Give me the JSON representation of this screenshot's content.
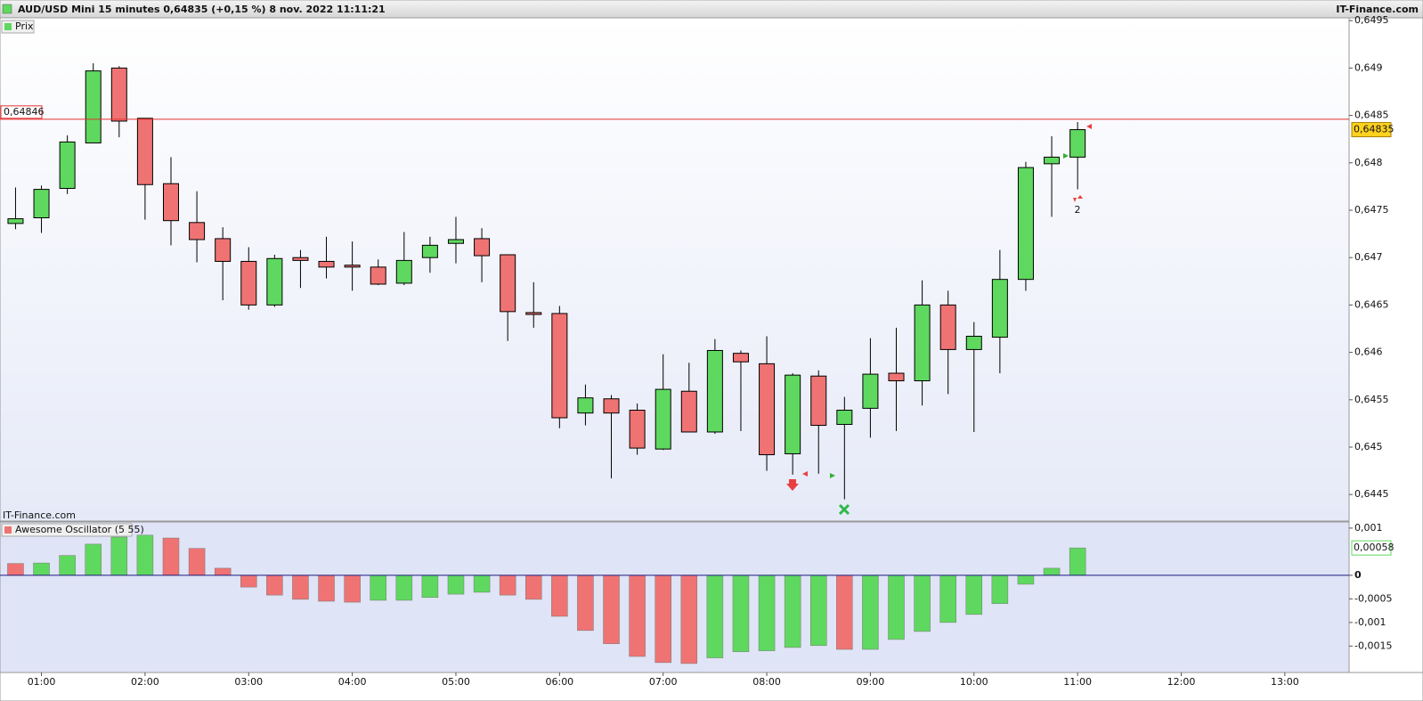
{
  "chart_data": [
    {
      "type": "candlestick",
      "title": "AUD/USD Mini 15 minutes 0,64835 (+0,15 %) 8 nov. 2022 11:11:21",
      "source": "IT-Finance.com",
      "legend": "Prix",
      "watermark": "IT-Finance.com",
      "x": [
        0.75,
        1,
        1.25,
        1.5,
        1.75,
        2,
        2.25,
        2.5,
        2.75,
        3,
        3.25,
        3.5,
        3.75,
        4,
        4.25,
        4.5,
        4.75,
        5,
        5.25,
        5.5,
        5.75,
        6,
        6.25,
        6.5,
        6.75,
        7,
        7.25,
        7.5,
        7.75,
        8,
        8.25,
        8.5,
        8.75,
        9,
        9.25,
        9.5,
        9.75,
        10,
        10.25,
        10.5,
        10.75,
        11
      ],
      "open": [
        0.64736,
        0.64742,
        0.64773,
        0.64821,
        0.649,
        0.64847,
        0.64778,
        0.64737,
        0.6472,
        0.64696,
        0.6465,
        0.647,
        0.64696,
        0.64692,
        0.6469,
        0.64673,
        0.647,
        0.64715,
        0.6472,
        0.64703,
        0.64642,
        0.64641,
        0.64536,
        0.64551,
        0.64539,
        0.64498,
        0.64559,
        0.64516,
        0.64599,
        0.64588,
        0.64493,
        0.64575,
        0.64524,
        0.64541,
        0.64578,
        0.6457,
        0.6465,
        0.64603,
        0.64616,
        0.64677,
        0.64799,
        0.64806
      ],
      "high": [
        0.64774,
        0.64776,
        0.64829,
        0.64905,
        0.64902,
        0.64847,
        0.64806,
        0.6477,
        0.64732,
        0.64711,
        0.64703,
        0.64708,
        0.64722,
        0.64717,
        0.64698,
        0.64727,
        0.64722,
        0.64743,
        0.64731,
        0.64703,
        0.64674,
        0.64649,
        0.64566,
        0.64555,
        0.64546,
        0.64598,
        0.64589,
        0.64614,
        0.64602,
        0.64617,
        0.64578,
        0.64581,
        0.64553,
        0.64615,
        0.64626,
        0.64676,
        0.64665,
        0.64632,
        0.64708,
        0.64801,
        0.64828,
        0.64843
      ],
      "low": [
        0.6473,
        0.64726,
        0.64767,
        0.64821,
        0.64827,
        0.6474,
        0.64713,
        0.64695,
        0.64655,
        0.64645,
        0.64648,
        0.64668,
        0.64678,
        0.64665,
        0.64671,
        0.64671,
        0.64684,
        0.64694,
        0.64674,
        0.64612,
        0.64626,
        0.6452,
        0.64523,
        0.64467,
        0.64492,
        0.64497,
        0.64516,
        0.64514,
        0.64517,
        0.64475,
        0.64471,
        0.64472,
        0.64445,
        0.6451,
        0.64517,
        0.64544,
        0.64556,
        0.64516,
        0.64578,
        0.64665,
        0.64743,
        0.64772
      ],
      "close": [
        0.64741,
        0.64772,
        0.64822,
        0.64897,
        0.64844,
        0.64777,
        0.64739,
        0.64719,
        0.64696,
        0.6465,
        0.64699,
        0.64697,
        0.6469,
        0.6469,
        0.64672,
        0.64697,
        0.64713,
        0.64719,
        0.64702,
        0.64643,
        0.6464,
        0.64531,
        0.64552,
        0.64536,
        0.64499,
        0.64561,
        0.64516,
        0.64602,
        0.6459,
        0.64492,
        0.64576,
        0.64523,
        0.64539,
        0.64577,
        0.6457,
        0.6465,
        0.64603,
        0.64617,
        0.64677,
        0.64795,
        0.64806,
        0.64835
      ],
      "up_color": "#5fd85f",
      "down_color": "#ef7373",
      "xlim": [
        0.6,
        13.62
      ],
      "xticks": [
        {
          "value": 1,
          "label": "01:00"
        },
        {
          "value": 2,
          "label": "02:00"
        },
        {
          "value": 3,
          "label": "03:00"
        },
        {
          "value": 4,
          "label": "04:00"
        },
        {
          "value": 5,
          "label": "05:00"
        },
        {
          "value": 6,
          "label": "06:00"
        },
        {
          "value": 7,
          "label": "07:00"
        },
        {
          "value": 8,
          "label": "08:00"
        },
        {
          "value": 9,
          "label": "09:00"
        },
        {
          "value": 10,
          "label": "10:00"
        },
        {
          "value": 11,
          "label": "11:00"
        },
        {
          "value": 12,
          "label": "12:00"
        },
        {
          "value": 13,
          "label": "13:00"
        }
      ],
      "ylim": [
        0.64422,
        0.64953
      ],
      "yticks": [
        {
          "value": 0.6445,
          "label": "0,6445"
        },
        {
          "value": 0.645,
          "label": "0,645"
        },
        {
          "value": 0.6455,
          "label": "0,6455"
        },
        {
          "value": 0.646,
          "label": "0,646"
        },
        {
          "value": 0.6465,
          "label": "0,6465"
        },
        {
          "value": 0.647,
          "label": "0,647"
        },
        {
          "value": 0.6475,
          "label": "0,6475"
        },
        {
          "value": 0.648,
          "label": "0,648"
        },
        {
          "value": 0.6485,
          "label": "0,6485"
        },
        {
          "value": 0.649,
          "label": "0,649"
        },
        {
          "value": 0.6495,
          "label": "0,6495"
        }
      ],
      "reference_line": {
        "value": 0.64846,
        "label": "0,64846",
        "color": "#e53030"
      },
      "last_price": {
        "value": 0.64835,
        "label": "0,64835"
      },
      "annotation": "2"
    },
    {
      "type": "bar",
      "title": "Awesome Oscillator (5 55)",
      "x": [
        0.75,
        1,
        1.25,
        1.5,
        1.75,
        2,
        2.25,
        2.5,
        2.75,
        3,
        3.25,
        3.5,
        3.75,
        4,
        4.25,
        4.5,
        4.75,
        5,
        5.25,
        5.5,
        5.75,
        6,
        6.25,
        6.5,
        6.75,
        7,
        7.25,
        7.5,
        7.75,
        8,
        8.25,
        8.5,
        8.75,
        9,
        9.25,
        9.5,
        9.75,
        10,
        10.25,
        10.5,
        10.75,
        11
      ],
      "values": [
        0.00025,
        0.00026,
        0.00042,
        0.00066,
        0.00081,
        0.00085,
        0.00079,
        0.00057,
        0.00015,
        -0.00025,
        -0.00042,
        -0.00051,
        -0.00055,
        -0.00057,
        -0.00053,
        -0.00053,
        -0.00047,
        -0.0004,
        -0.00036,
        -0.00042,
        -0.00051,
        -0.00087,
        -0.00117,
        -0.00145,
        -0.00172,
        -0.00185,
        -0.00187,
        -0.00175,
        -0.00162,
        -0.0016,
        -0.00153,
        -0.00149,
        -0.00157,
        -0.00157,
        -0.00136,
        -0.00119,
        -0.001,
        -0.00083,
        -0.0006,
        -0.00019,
        0.00015,
        0.00058
      ],
      "colors": [
        "#ef7373",
        "#5fd85f",
        "#5fd85f",
        "#5fd85f",
        "#5fd85f",
        "#5fd85f",
        "#ef7373",
        "#ef7373",
        "#ef7373",
        "#ef7373",
        "#ef7373",
        "#ef7373",
        "#ef7373",
        "#ef7373",
        "#5fd85f",
        "#5fd85f",
        "#5fd85f",
        "#5fd85f",
        "#5fd85f",
        "#ef7373",
        "#ef7373",
        "#ef7373",
        "#ef7373",
        "#ef7373",
        "#ef7373",
        "#ef7373",
        "#ef7373",
        "#5fd85f",
        "#5fd85f",
        "#5fd85f",
        "#5fd85f",
        "#5fd85f",
        "#ef7373",
        "#5fd85f",
        "#5fd85f",
        "#5fd85f",
        "#5fd85f",
        "#5fd85f",
        "#5fd85f",
        "#5fd85f",
        "#5fd85f",
        "#5fd85f"
      ],
      "ylim": [
        -0.00206,
        0.00113
      ],
      "yticks": [
        {
          "value": 0.001,
          "label": "0,001"
        },
        0,
        {
          "value": -0.0005,
          "label": "-0,0005"
        },
        {
          "value": -0.001,
          "label": "-0,001"
        },
        {
          "value": -0.0015,
          "label": "-0,0015"
        }
      ],
      "last_value": {
        "value": 0.00058,
        "label": "0,00058"
      }
    }
  ]
}
